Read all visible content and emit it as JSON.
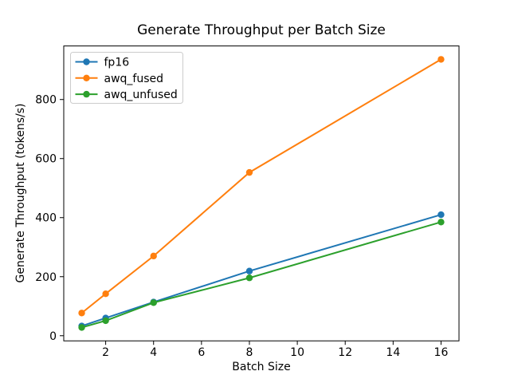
{
  "figure": {
    "background": "#ffffff",
    "spine_color": "#000000",
    "tick_color": "#000000"
  },
  "chart_data": {
    "type": "line",
    "title": "Generate Throughput per Batch Size",
    "xlabel": "Batch Size",
    "ylabel": "Generate Throughput (tokens/s)",
    "x": [
      1,
      2,
      4,
      8,
      16
    ],
    "series": [
      {
        "name": "fp16",
        "color": "#1f77b4",
        "values": [
          33,
          60,
          114,
          219,
          410
        ]
      },
      {
        "name": "awq_fused",
        "color": "#ff7f0e",
        "values": [
          77,
          142,
          270,
          553,
          936
        ]
      },
      {
        "name": "awq_unfused",
        "color": "#2ca02c",
        "values": [
          28,
          51,
          112,
          196,
          385
        ]
      }
    ],
    "x_ticks": [
      2,
      4,
      6,
      8,
      10,
      12,
      14,
      16
    ],
    "y_ticks": [
      0,
      200,
      400,
      600,
      800
    ],
    "xlim": [
      0.25,
      16.75
    ],
    "ylim": [
      -17.4,
      981.4
    ],
    "grid": false,
    "marker": "o",
    "legend_position": "upper left",
    "legend": {
      "border_color": "#cccccc",
      "background": "rgba(255,255,255,0.8)",
      "entries": [
        "fp16",
        "awq_fused",
        "awq_unfused"
      ]
    }
  }
}
